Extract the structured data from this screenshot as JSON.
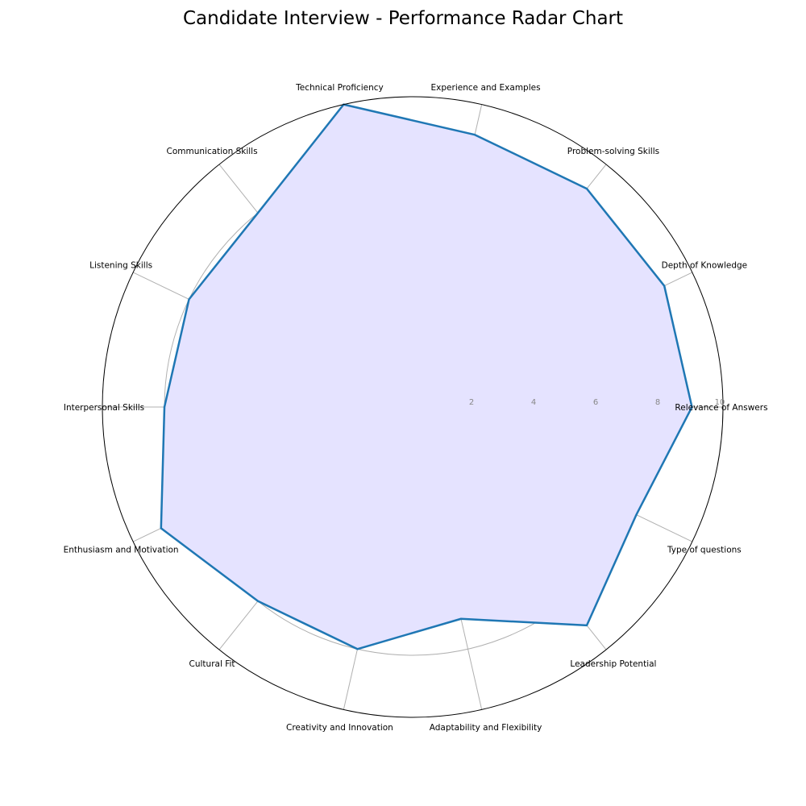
{
  "chart_data": {
    "type": "radar",
    "title": "Candidate Interview - Performance Radar Chart",
    "categories": [
      "Relevance of Answers",
      "Depth of Knowledge",
      "Problem-solving Skills",
      "Experience and Examples",
      "Technical Proficiency",
      "Communication Skills",
      "Listening Skills",
      "Interpersonal Skills",
      "Enthusiasm and Motivation",
      "Cultural Fit",
      "Creativity and Innovation",
      "Adaptability and Flexibility",
      "Leadership Potential",
      "Type of questions"
    ],
    "values": [
      9,
      9,
      9,
      9,
      10,
      8,
      8,
      8,
      9,
      8,
      8,
      7,
      9,
      8
    ],
    "rlim": [
      0,
      10
    ],
    "rticks": [
      "2",
      "4",
      "6",
      "8",
      "10"
    ],
    "grid": true,
    "colors": {
      "line": "#1f77b4",
      "fill": "#e5e3ff",
      "grid": "#b0b0b0",
      "frame": "#000000",
      "tick": "#888888"
    }
  }
}
